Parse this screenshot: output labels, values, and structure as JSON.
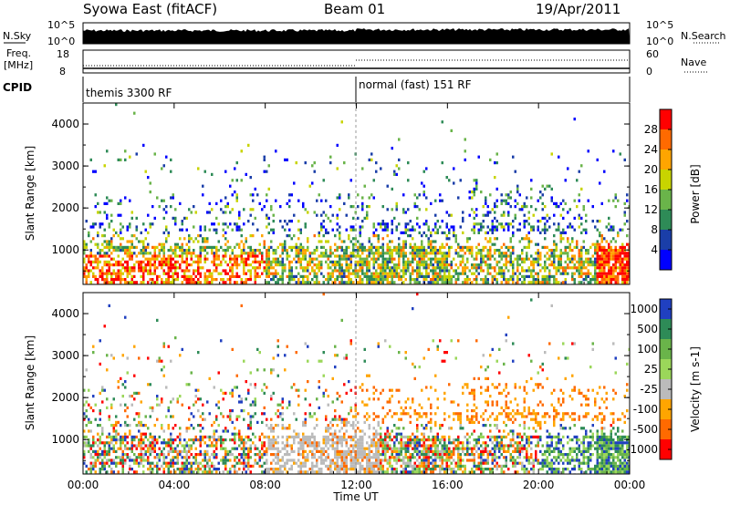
{
  "header": {
    "title": "Syowa East (fitACF)",
    "beam": "Beam 01",
    "date": "19/Apr/2011"
  },
  "strips": {
    "nsky_label": "N.Sky",
    "nsky_ticks": [
      "10^5",
      "10^0"
    ],
    "nsearch_label": "N.Search",
    "nsearch_ticks": [
      "10^5",
      "10^0"
    ],
    "freq_label_1": "Freq.",
    "freq_label_2": "[MHz]",
    "freq_ticks": [
      "18",
      "8"
    ],
    "nave_label": "Nave",
    "nave_ticks": [
      "60",
      "0"
    ],
    "cpid_label": "CPID",
    "cpid_segments": [
      "themis 3300 RF",
      "normal (fast) 151 RF"
    ]
  },
  "chart_data": [
    {
      "type": "heatmap",
      "parameter": "Power",
      "colorbar_label": "Power [dB]",
      "colorbar_ticks": [
        "28",
        "24",
        "20",
        "16",
        "12",
        "8",
        "4"
      ],
      "colorbar_colors": [
        "#ff0000",
        "#ff6a00",
        "#ffa500",
        "#c8d400",
        "#6ab44a",
        "#2e8b57",
        "#1a3ea8",
        "#0000ff"
      ],
      "ylabel": "Slant Range [km]",
      "yticks": [
        "4000",
        "3000",
        "2000",
        "1000"
      ],
      "ylim": [
        180,
        4500
      ],
      "xlim": [
        0,
        24
      ],
      "xlabel": "",
      "grid": false
    },
    {
      "type": "heatmap",
      "parameter": "Velocity",
      "colorbar_label": "Velocity [m s-1]",
      "colorbar_ticks": [
        "1000",
        "500",
        "100",
        "25",
        "-25",
        "-100",
        "-500",
        "-1000"
      ],
      "colorbar_colors": [
        "#2040c0",
        "#2e8b57",
        "#6ab44a",
        "#9bd75a",
        "#bbbbbb",
        "#ffa500",
        "#ff6a00",
        "#ff0000"
      ],
      "ylabel": "Slant Range [km]",
      "yticks": [
        "4000",
        "3000",
        "2000",
        "1000"
      ],
      "ylim": [
        180,
        4500
      ],
      "xlim": [
        0,
        24
      ],
      "xlabel": "Time UT",
      "xticks": [
        "00:00",
        "04:00",
        "08:00",
        "12:00",
        "16:00",
        "20:00",
        "00:00"
      ],
      "grid": false
    }
  ]
}
